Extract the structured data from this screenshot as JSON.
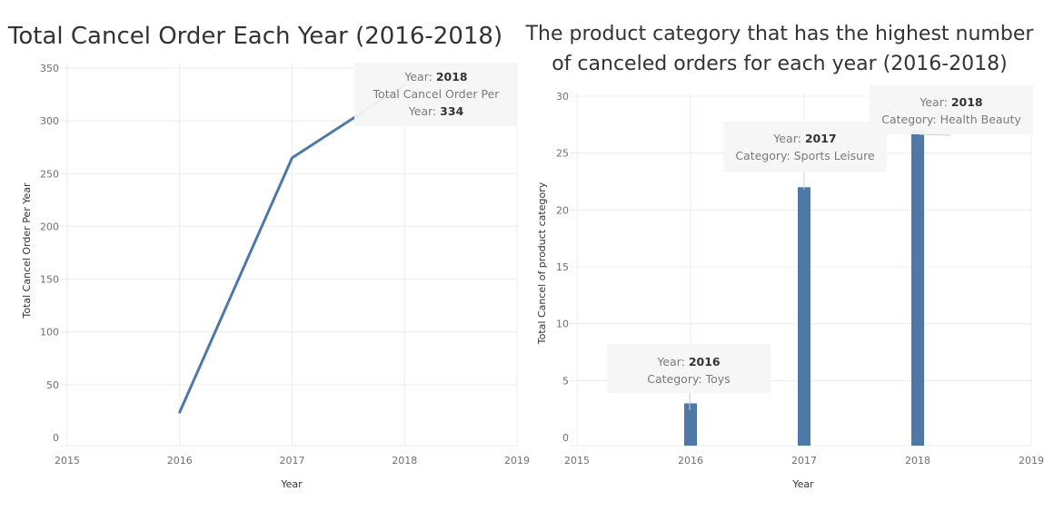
{
  "chart_data": [
    {
      "type": "line",
      "title": "Total Cancel Order Each Year (2016-2018)",
      "xlabel": "Year",
      "ylabel": "Total Cancel Order Per Year",
      "x_ticks": [
        "2015",
        "2016",
        "2017",
        "2018",
        "2019"
      ],
      "ylim": [
        0,
        350
      ],
      "y_ticks": [
        0,
        50,
        100,
        150,
        200,
        250,
        300,
        350
      ],
      "grid": true,
      "x": [
        "2016",
        "2017",
        "2018"
      ],
      "values": [
        24,
        265,
        334
      ],
      "color": "#4e79a7",
      "tooltip": {
        "year_label": "Year:",
        "year_value": "2018",
        "metric_label_line1": "Total Cancel Order Per",
        "metric_label_line2": "Year:",
        "metric_value": "334"
      }
    },
    {
      "type": "bar",
      "title_line1": "The product category that has the highest number",
      "title_line2": "of canceled orders for each year (2016-2018)",
      "xlabel": "Year",
      "ylabel": "Total Cancel of product category",
      "x_ticks": [
        "2015",
        "2016",
        "2017",
        "2018",
        "2019"
      ],
      "ylim": [
        0,
        30
      ],
      "y_ticks": [
        0,
        5,
        10,
        15,
        20,
        25,
        30
      ],
      "grid": true,
      "categories": [
        "2016",
        "2017",
        "2018"
      ],
      "values": [
        3,
        22,
        27
      ],
      "color": "#4e79a7",
      "tooltips": [
        {
          "year_label": "Year:",
          "year_value": "2016",
          "category_text": "Category: Toys"
        },
        {
          "year_label": "Year:",
          "year_value": "2017",
          "category_text": "Category: Sports Leisure"
        },
        {
          "year_label": "Year:",
          "year_value": "2018",
          "category_text": "Category: Health Beauty"
        }
      ]
    }
  ]
}
